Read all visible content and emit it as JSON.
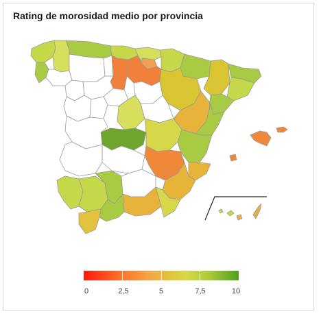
{
  "title": "Rating de morosidad medio por provincia",
  "legend": {
    "ticks": [
      "0",
      "2,5",
      "5",
      "7,5",
      "10"
    ],
    "range": [
      0,
      10
    ],
    "colors": [
      "#ff1a0d",
      "#ff6a2a",
      "#f5a447",
      "#e3c23e",
      "#d6d84a",
      "#a9c83a",
      "#4f9f1e"
    ]
  },
  "map": {
    "no_data_color": "#ffffff",
    "border_color": "#9a9a9a",
    "regions_colored": [
      {
        "name": "galicia-north",
        "color": "#c5d84a"
      },
      {
        "name": "asturias",
        "color": "#d3df5b"
      },
      {
        "name": "cantabria",
        "color": "#a9cb44"
      },
      {
        "name": "burgos",
        "color": "#f0803a"
      },
      {
        "name": "la-rioja",
        "color": "#f0a050"
      },
      {
        "name": "navarra",
        "color": "#a9cb44"
      },
      {
        "name": "aragon",
        "color": "#d8c531"
      },
      {
        "name": "catalonia",
        "color": "#a9cb44"
      },
      {
        "name": "valencia",
        "color": "#e0b93a"
      },
      {
        "name": "madrid",
        "color": "#6ea52c"
      },
      {
        "name": "albacete",
        "color": "#f0883a"
      },
      {
        "name": "murcia",
        "color": "#e6b537"
      },
      {
        "name": "andalucia",
        "color": "#a9cb44"
      },
      {
        "name": "baleares",
        "color": "#f0883a"
      },
      {
        "name": "canarias",
        "color": "#e7b046"
      }
    ]
  }
}
